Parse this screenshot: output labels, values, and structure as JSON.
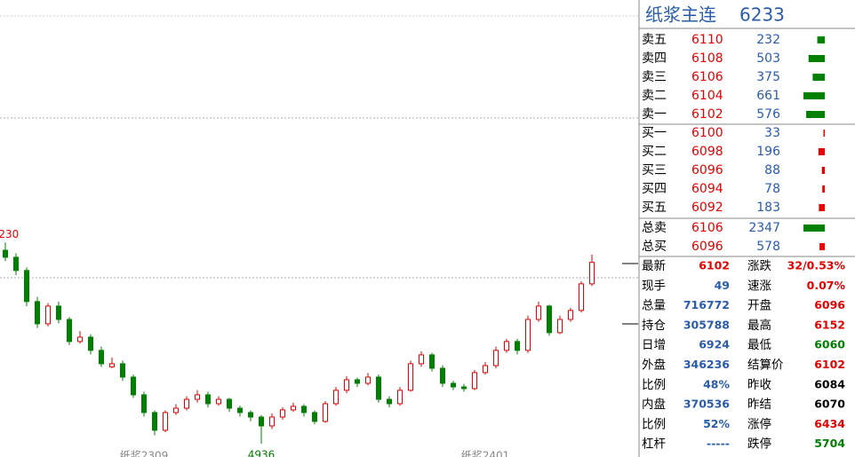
{
  "chart_data": {
    "type": "candlestick",
    "ylim": [
      4850,
      7790
    ],
    "up_color": "#e60000",
    "down_color": "#008000",
    "categories": [
      null,
      null,
      null,
      null,
      null,
      null,
      null,
      null,
      null,
      null,
      null,
      null,
      null,
      "纸浆2309",
      null,
      null,
      null,
      null,
      null,
      null,
      null,
      null,
      null,
      null,
      null,
      null,
      null,
      null,
      null,
      null,
      null,
      null,
      null,
      null,
      null,
      null,
      null,
      null,
      null,
      null,
      null,
      null,
      null,
      null,
      null,
      "纸浆2401",
      null,
      null,
      null,
      null,
      null,
      null,
      null,
      null,
      null,
      null
    ],
    "candles": [
      [
        6180,
        6230,
        6110,
        6135
      ],
      [
        6135,
        6160,
        6020,
        6050
      ],
      [
        6050,
        6070,
        5820,
        5850
      ],
      [
        5850,
        5880,
        5680,
        5707
      ],
      [
        5707,
        5840,
        5690,
        5821
      ],
      [
        5821,
        5850,
        5710,
        5735
      ],
      [
        5735,
        5750,
        5570,
        5593
      ],
      [
        5593,
        5660,
        5580,
        5621
      ],
      [
        5621,
        5640,
        5510,
        5536
      ],
      [
        5536,
        5560,
        5430,
        5450
      ],
      [
        5430,
        5490,
        5420,
        5450
      ],
      [
        5450,
        5470,
        5340,
        5364
      ],
      [
        5364,
        5380,
        5230,
        5250
      ],
      [
        5250,
        5270,
        5110,
        5136
      ],
      [
        5136,
        5150,
        4990,
        5022
      ],
      [
        5022,
        5150,
        5010,
        5136
      ],
      [
        5136,
        5190,
        5120,
        5164
      ],
      [
        5164,
        5240,
        5150,
        5221
      ],
      [
        5221,
        5280,
        5200,
        5250
      ],
      [
        5250,
        5270,
        5170,
        5193
      ],
      [
        5193,
        5240,
        5180,
        5221
      ],
      [
        5221,
        5230,
        5140,
        5164
      ],
      [
        5164,
        5180,
        5110,
        5136
      ],
      [
        5136,
        5150,
        5080,
        5107
      ],
      [
        5107,
        5120,
        4936,
        5050
      ],
      [
        5050,
        5130,
        5030,
        5107
      ],
      [
        5107,
        5170,
        5090,
        5153
      ],
      [
        5153,
        5200,
        5140,
        5176
      ],
      [
        5176,
        5190,
        5110,
        5136
      ],
      [
        5136,
        5150,
        5060,
        5079
      ],
      [
        5079,
        5210,
        5070,
        5193
      ],
      [
        5193,
        5300,
        5180,
        5279
      ],
      [
        5279,
        5370,
        5260,
        5347
      ],
      [
        5347,
        5360,
        5300,
        5324
      ],
      [
        5324,
        5390,
        5310,
        5364
      ],
      [
        5364,
        5380,
        5200,
        5221
      ],
      [
        5221,
        5240,
        5170,
        5193
      ],
      [
        5193,
        5300,
        5180,
        5279
      ],
      [
        5279,
        5470,
        5270,
        5450
      ],
      [
        5450,
        5530,
        5430,
        5507
      ],
      [
        5507,
        5520,
        5400,
        5421
      ],
      [
        5421,
        5440,
        5300,
        5324
      ],
      [
        5324,
        5340,
        5280,
        5301
      ],
      [
        5301,
        5320,
        5270,
        5290
      ],
      [
        5290,
        5410,
        5280,
        5393
      ],
      [
        5393,
        5460,
        5380,
        5438
      ],
      [
        5438,
        5560,
        5420,
        5536
      ],
      [
        5536,
        5610,
        5520,
        5593
      ],
      [
        5593,
        5610,
        5510,
        5536
      ],
      [
        5536,
        5760,
        5520,
        5735
      ],
      [
        5735,
        5850,
        5720,
        5821
      ],
      [
        5821,
        5830,
        5630,
        5650
      ],
      [
        5650,
        5760,
        5640,
        5735
      ],
      [
        5735,
        5810,
        5720,
        5793
      ],
      [
        5793,
        5980,
        5780,
        5964
      ],
      [
        5964,
        6152,
        5950,
        6102
      ]
    ]
  },
  "quote": {
    "title": "纸浆主连",
    "code": "6233"
  },
  "order_book": {
    "asks": [
      {
        "label": "卖五",
        "price": 6110,
        "volume": 232
      },
      {
        "label": "卖四",
        "price": 6108,
        "volume": 503
      },
      {
        "label": "卖三",
        "price": 6106,
        "volume": 375
      },
      {
        "label": "卖二",
        "price": 6104,
        "volume": 661
      },
      {
        "label": "卖一",
        "price": 6102,
        "volume": 576
      }
    ],
    "bids": [
      {
        "label": "买一",
        "price": 6100,
        "volume": 33
      },
      {
        "label": "买二",
        "price": 6098,
        "volume": 196
      },
      {
        "label": "买三",
        "price": 6096,
        "volume": 88
      },
      {
        "label": "买四",
        "price": 6094,
        "volume": 78
      },
      {
        "label": "买五",
        "price": 6092,
        "volume": 183
      }
    ],
    "totals": [
      {
        "label": "总卖",
        "price": 6106,
        "volume": 2347
      },
      {
        "label": "总买",
        "price": 6096,
        "volume": 578
      }
    ]
  },
  "stats": [
    [
      {
        "label": "最新",
        "value": 6102,
        "color": "#e60000"
      },
      {
        "label": "涨跌",
        "value": "32/0.53%",
        "color": "#e60000"
      }
    ],
    [
      {
        "label": "现手",
        "value": 49,
        "color": "#2a5caa"
      },
      {
        "label": "速涨",
        "value": "0.07%",
        "color": "#e60000"
      }
    ],
    [
      {
        "label": "总量",
        "value": 716772,
        "color": "#2a5caa"
      },
      {
        "label": "开盘",
        "value": 6096,
        "color": "#e60000"
      }
    ],
    [
      {
        "label": "持仓",
        "value": 305788,
        "color": "#2a5caa"
      },
      {
        "label": "最高",
        "value": 6152,
        "color": "#e60000"
      }
    ],
    [
      {
        "label": "日增",
        "value": 6924,
        "color": "#2a5caa"
      },
      {
        "label": "最低",
        "value": 6060,
        "color": "#008000"
      }
    ],
    [
      {
        "label": "外盘",
        "value": 346236,
        "color": "#2a5caa"
      },
      {
        "label": "结算价",
        "value": 6102,
        "color": "#e60000"
      }
    ],
    [
      {
        "label": "比例",
        "value": "48%",
        "color": "#2a5caa"
      },
      {
        "label": "昨收",
        "value": 6084,
        "color": "#000000"
      }
    ],
    [
      {
        "label": "内盘",
        "value": 370536,
        "color": "#2a5caa"
      },
      {
        "label": "昨结",
        "value": 6070,
        "color": "#000000"
      }
    ],
    [
      {
        "label": "比例",
        "value": "52%",
        "color": "#2a5caa"
      },
      {
        "label": "涨停",
        "value": 6434,
        "color": "#e60000"
      }
    ],
    [
      {
        "label": "杠杆",
        "value": "-----",
        "color": "#2a5caa"
      },
      {
        "label": "跌停",
        "value": 5704,
        "color": "#008000"
      }
    ]
  ]
}
